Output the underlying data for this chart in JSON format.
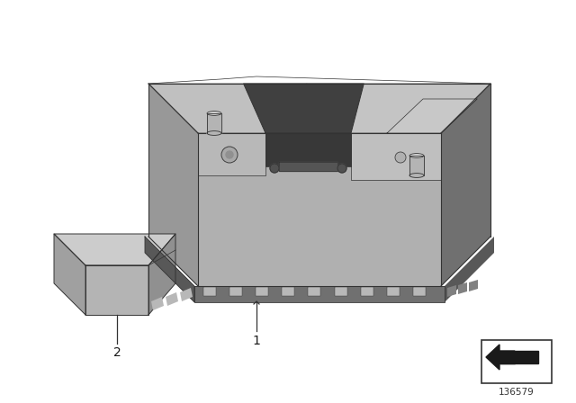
{
  "background_color": "#ffffff",
  "diagram_id": "136579",
  "label1": "1",
  "label2": "2",
  "c_top": "#c8c8c8",
  "c_front": "#b0b0b0",
  "c_right": "#989898",
  "c_side_left": "#a8a8a8",
  "c_dark": "#707070",
  "c_darker": "#585858",
  "c_black": "#1a1a1a",
  "c_strap": "#404040",
  "c_panel_dark": "#3c3c3c",
  "c_ledge": "#909090",
  "c_tab": "#b8b8b8",
  "c_outline": "#333333",
  "c_terminal": "#b4b4b4",
  "c_circle": "#a0a0a0"
}
